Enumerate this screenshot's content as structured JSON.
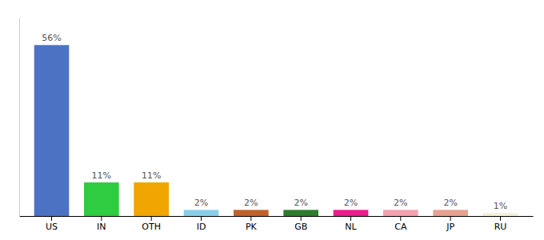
{
  "chart_data": {
    "type": "bar",
    "categories": [
      "US",
      "IN",
      "OTH",
      "ID",
      "PK",
      "GB",
      "NL",
      "CA",
      "JP",
      "RU"
    ],
    "values": [
      56,
      11,
      11,
      2,
      2,
      2,
      2,
      2,
      2,
      1
    ],
    "value_labels": [
      "56%",
      "11%",
      "11%",
      "2%",
      "2%",
      "2%",
      "2%",
      "2%",
      "2%",
      "1%"
    ],
    "colors": [
      "#4c72c4",
      "#2ecc40",
      "#f0a500",
      "#87ceeb",
      "#c0622a",
      "#2d7d2d",
      "#e91e8c",
      "#f4a0b0",
      "#e8a090",
      "#f5f0d8"
    ],
    "ylim": [
      0,
      65
    ],
    "data_labels": true,
    "tick_labels": "x",
    "grid": false
  }
}
